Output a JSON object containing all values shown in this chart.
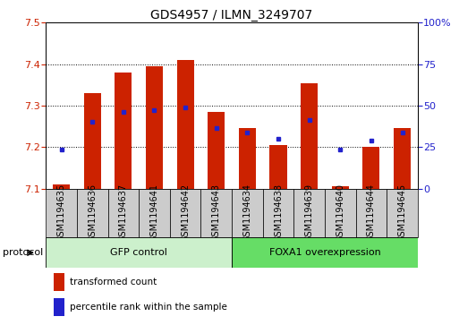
{
  "title": "GDS4957 / ILMN_3249707",
  "samples": [
    "GSM1194635",
    "GSM1194636",
    "GSM1194637",
    "GSM1194641",
    "GSM1194642",
    "GSM1194643",
    "GSM1194634",
    "GSM1194638",
    "GSM1194639",
    "GSM1194640",
    "GSM1194644",
    "GSM1194645"
  ],
  "red_values": [
    7.11,
    7.33,
    7.38,
    7.395,
    7.41,
    7.285,
    7.245,
    7.205,
    7.355,
    7.105,
    7.2,
    7.245
  ],
  "blue_values": [
    7.195,
    7.26,
    7.285,
    7.29,
    7.295,
    7.245,
    7.235,
    7.22,
    7.265,
    7.195,
    7.215,
    7.235
  ],
  "ylim": [
    7.1,
    7.5
  ],
  "yticks_left": [
    7.1,
    7.2,
    7.3,
    7.4,
    7.5
  ],
  "yticks_right": [
    0,
    25,
    50,
    75,
    100
  ],
  "group1_label": "GFP control",
  "group1_count": 6,
  "group2_label": "FOXA1 overexpression",
  "group2_count": 6,
  "group1_color": "#ccf0cc",
  "group2_color": "#66dd66",
  "bar_color": "#cc2200",
  "dot_color": "#2222cc",
  "bar_bottom": 7.1,
  "legend_red_label": "transformed count",
  "legend_blue_label": "percentile rank within the sample",
  "protocol_label": "protocol",
  "tick_label_bg": "#cccccc",
  "title_fontsize": 10,
  "tick_fontsize": 7,
  "label_fontsize": 8
}
